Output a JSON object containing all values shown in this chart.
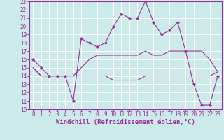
{
  "xlabel": "Windchill (Refroidissement éolien,°C)",
  "bg_color": "#cceaea",
  "grid_color": "#ffffff",
  "line_color": "#993399",
  "xlim": [
    -0.5,
    23.5
  ],
  "ylim": [
    10,
    23
  ],
  "xticks": [
    0,
    1,
    2,
    3,
    4,
    5,
    6,
    7,
    8,
    9,
    10,
    11,
    12,
    13,
    14,
    15,
    16,
    17,
    18,
    19,
    20,
    21,
    22,
    23
  ],
  "yticks": [
    10,
    11,
    12,
    13,
    14,
    15,
    16,
    17,
    18,
    19,
    20,
    21,
    22,
    23
  ],
  "line1_x": [
    0,
    1,
    2,
    3,
    4,
    5,
    6,
    7,
    8,
    9,
    10,
    11,
    12,
    13,
    14,
    15,
    16,
    17,
    18,
    19,
    20,
    21,
    22,
    23
  ],
  "line1_y": [
    16,
    15,
    14,
    14,
    14,
    11,
    18.5,
    18,
    17.5,
    18,
    20,
    21.5,
    21,
    21,
    23,
    20.5,
    19,
    19.5,
    20.5,
    17,
    13,
    10.5,
    10.5,
    14
  ],
  "line2_x": [
    0,
    1,
    2,
    3,
    4,
    5,
    6,
    7,
    8,
    9,
    10,
    11,
    12,
    13,
    14,
    15,
    16,
    17,
    18,
    19,
    20,
    21,
    22,
    23
  ],
  "line2_y": [
    15,
    14,
    14,
    14,
    14,
    14,
    15,
    16,
    16.5,
    16.5,
    16.5,
    16.5,
    16.5,
    16.5,
    17,
    16.5,
    16.5,
    17,
    17,
    17,
    17,
    17,
    16,
    14.5
  ],
  "line3_x": [
    0,
    1,
    2,
    3,
    4,
    5,
    6,
    7,
    8,
    9,
    10,
    11,
    12,
    13,
    14,
    15,
    16,
    17,
    18,
    19,
    20,
    21,
    22,
    23
  ],
  "line3_y": [
    15,
    14,
    14,
    14,
    14,
    14,
    14,
    14,
    14,
    14,
    13.5,
    13.5,
    13.5,
    13.5,
    14,
    14,
    14,
    14,
    14,
    14,
    14,
    14,
    14,
    14.5
  ],
  "xlabel_fontsize": 6.5,
  "tick_fontsize": 5.5
}
